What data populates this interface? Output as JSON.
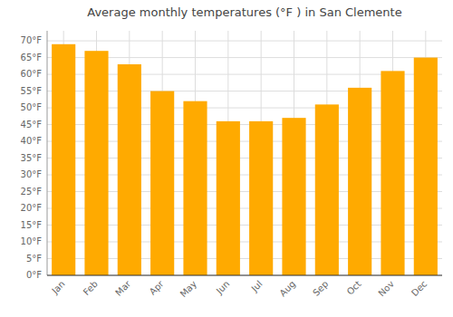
{
  "chart_data": {
    "type": "bar",
    "title": "Average monthly temperatures (°F ) in San Clemente",
    "categories": [
      "Jan",
      "Feb",
      "Mar",
      "Apr",
      "May",
      "Jun",
      "Jul",
      "Aug",
      "Sep",
      "Oct",
      "Nov",
      "Dec"
    ],
    "values": [
      69,
      67,
      63,
      55,
      52,
      46,
      46,
      47,
      51,
      56,
      61,
      65
    ],
    "color": "#FFAA00",
    "ylim": [
      0,
      73
    ],
    "yticks": [
      {
        "value": 0,
        "label": "0°F"
      },
      {
        "value": 5,
        "label": "5°F"
      },
      {
        "value": 10,
        "label": "10°F"
      },
      {
        "value": 15,
        "label": "15°F"
      },
      {
        "value": 20,
        "label": "20°F"
      },
      {
        "value": 25,
        "label": "25°F"
      },
      {
        "value": 30,
        "label": "30°F"
      },
      {
        "value": 35,
        "label": "35°F"
      },
      {
        "value": 40,
        "label": "40°F"
      },
      {
        "value": 45,
        "label": "45°F"
      },
      {
        "value": 50,
        "label": "50°F"
      },
      {
        "value": 55,
        "label": "55°F"
      },
      {
        "value": 60,
        "label": "60°F"
      },
      {
        "value": 65,
        "label": "65°F"
      },
      {
        "value": 70,
        "label": "70°F"
      }
    ],
    "grid": true
  }
}
